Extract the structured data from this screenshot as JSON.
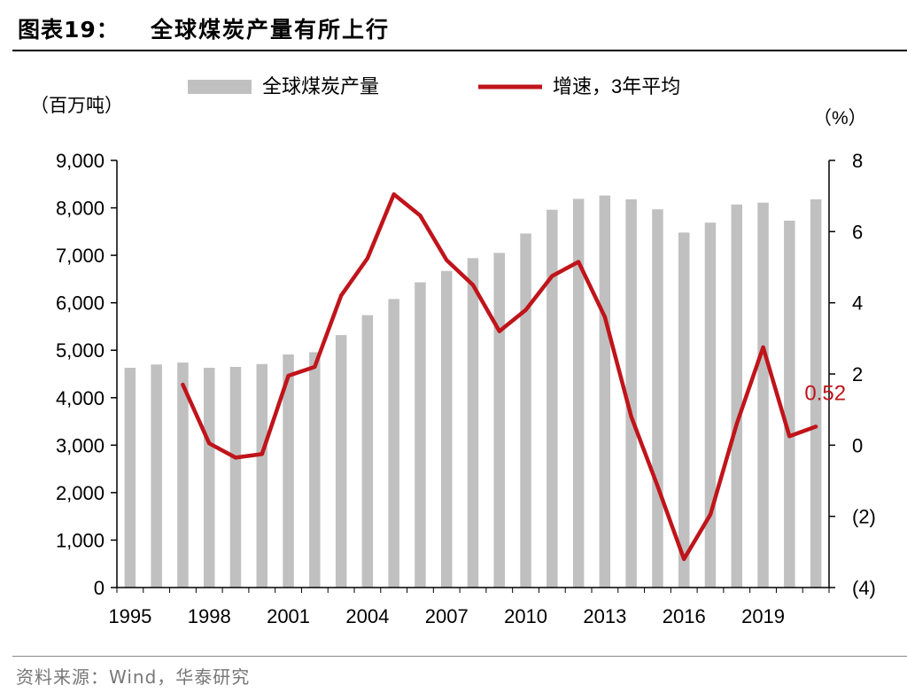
{
  "header": {
    "figure_label": "图表19：",
    "title": "全球煤炭产量有所上行"
  },
  "footer": {
    "source": "资料来源：Wind，华泰研究"
  },
  "colors": {
    "bar": "#c0c0c0",
    "line": "#c0141b",
    "annotation": "#c0141b"
  },
  "chart_data": {
    "type": "bar",
    "title": "",
    "left_unit": "（百万吨）",
    "right_unit": "（%）",
    "legend": {
      "placement": "top",
      "bar_label": "全球煤炭产量",
      "line_label": "增速，3年平均"
    },
    "x": [
      1995,
      1996,
      1997,
      1998,
      1999,
      2000,
      2001,
      2002,
      2003,
      2004,
      2005,
      2006,
      2007,
      2008,
      2009,
      2010,
      2011,
      2012,
      2013,
      2014,
      2015,
      2016,
      2017,
      2018,
      2019,
      2020,
      2021
    ],
    "x_tick_labels": [
      "1995",
      "1998",
      "2001",
      "2004",
      "2007",
      "2010",
      "2013",
      "2016",
      "2019"
    ],
    "y_left": {
      "min": 0,
      "max": 9000,
      "ticks": [
        0,
        1000,
        2000,
        3000,
        4000,
        5000,
        6000,
        7000,
        8000,
        9000
      ],
      "tick_labels": [
        "0",
        "1,000",
        "2,000",
        "3,000",
        "4,000",
        "5,000",
        "6,000",
        "7,000",
        "8,000",
        "9,000"
      ]
    },
    "y_right": {
      "min": -4,
      "max": 8,
      "ticks": [
        -4,
        -2,
        0,
        2,
        4,
        6,
        8
      ],
      "tick_labels": [
        "(4)",
        "(2)",
        "0",
        "2",
        "4",
        "6",
        "8"
      ]
    },
    "grid": false,
    "series": [
      {
        "name": "全球煤炭产量",
        "kind": "bar",
        "axis": "left",
        "values": [
          4630,
          4700,
          4740,
          4630,
          4650,
          4710,
          4910,
          4960,
          5320,
          5740,
          6080,
          6430,
          6670,
          6940,
          7050,
          7460,
          7960,
          8190,
          8260,
          8180,
          7970,
          7480,
          7690,
          8070,
          8110,
          7730,
          8180
        ]
      },
      {
        "name": "增速，3年平均",
        "kind": "line",
        "axis": "right",
        "values": [
          null,
          null,
          1.7,
          0.05,
          -0.35,
          -0.25,
          1.95,
          2.2,
          4.2,
          5.25,
          7.05,
          6.45,
          5.2,
          4.5,
          3.2,
          3.8,
          4.75,
          5.15,
          3.6,
          0.8,
          -1.15,
          -3.2,
          -1.95,
          0.6,
          2.75,
          0.25,
          0.52
        ]
      }
    ],
    "annotations": [
      {
        "text": "0.52",
        "x": 2021,
        "series": "增速，3年平均"
      }
    ]
  }
}
